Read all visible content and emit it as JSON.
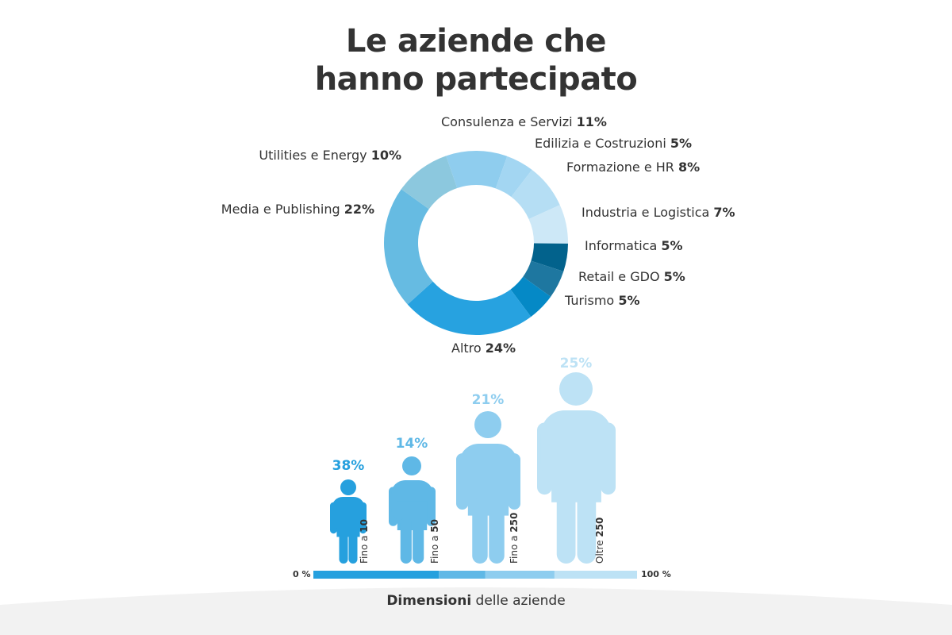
{
  "title_line1": "Le aziende che",
  "title_line2": "hanno partecipato",
  "chart_data": [
    {
      "type": "pie",
      "donut": true,
      "title": "Le aziende che hanno partecipato",
      "slices": [
        {
          "label": "Consulenza e Servizi",
          "value": 11,
          "display": "11%",
          "color": "#8fcdee"
        },
        {
          "label": "Edilizia e Costruzioni",
          "value": 5,
          "display": "5%",
          "color": "#a3d6f2"
        },
        {
          "label": "Formazione e HR",
          "value": 8,
          "display": "8%",
          "color": "#b5def4"
        },
        {
          "label": "Industria e Logistica",
          "value": 7,
          "display": "7%",
          "color": "#cde8f7"
        },
        {
          "label": "Informatica",
          "value": 5,
          "display": "5%",
          "color": "#02628c"
        },
        {
          "label": "Retail e GDO",
          "value": 5,
          "display": "5%",
          "color": "#1e77a0"
        },
        {
          "label": "Turismo",
          "value": 5,
          "display": "5%",
          "color": "#0589c6"
        },
        {
          "label": "Altro",
          "value": 24,
          "display": "24%",
          "color": "#27a2e0"
        },
        {
          "label": "Media e Publishing",
          "value": 22,
          "display": "22%",
          "color": "#66bbe2"
        },
        {
          "label": "Utilities e Energy",
          "value": 10,
          "display": "10%",
          "color": "#8cc8de"
        }
      ]
    },
    {
      "type": "bar",
      "stacked": true,
      "title_bold": "Dimensioni",
      "title_rest": " delle aziende",
      "axis_min_label": "0 %",
      "axis_max_label": "100 %",
      "categories": [
        {
          "prefix": "Fino a ",
          "bold": "10",
          "value": 38,
          "display": "38%",
          "color": "#26a0de"
        },
        {
          "prefix": "Fino a ",
          "bold": "50",
          "value": 14,
          "display": "14%",
          "color": "#5fb8e6"
        },
        {
          "prefix": "Fino a ",
          "bold": "250",
          "value": 21,
          "display": "21%",
          "color": "#8ecdef"
        },
        {
          "prefix": "Oltre ",
          "bold": "250",
          "value": 25,
          "display": "25%",
          "color": "#bde2f5"
        }
      ]
    }
  ]
}
